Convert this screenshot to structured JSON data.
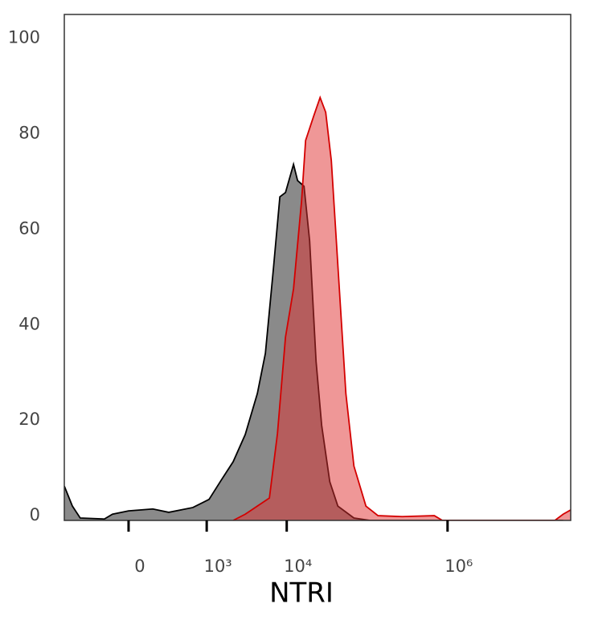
{
  "chart_data": {
    "type": "area",
    "x_label": "NTRI",
    "xscale": "biexponential",
    "xlim": [
      -663,
      34000000
    ],
    "xticks": [
      {
        "value": 0,
        "label": "0"
      },
      {
        "value": 1000,
        "label": "10³"
      },
      {
        "value": 10000,
        "label": "10⁴"
      },
      {
        "value": 1000000,
        "label": "10⁶"
      }
    ],
    "ylim": [
      0,
      106
    ],
    "yticks": [
      0,
      20,
      40,
      60,
      80,
      100
    ],
    "series": [
      {
        "color": "#8a8a8a",
        "line_color": "#000000",
        "opacity": 1,
        "x": [
          -663,
          -518,
          -404,
          -162,
          -103,
          0,
          162,
          307,
          663,
          1071,
          1521,
          2153,
          3046,
          4313,
          5427,
          6826,
          8217,
          9655,
          12150,
          13650,
          16420,
          19270,
          23180,
          27210,
          34330,
          43240,
          68460,
          108500,
          27400000
        ],
        "values": [
          7.2,
          3,
          0.5,
          0.3,
          1.3,
          2,
          2.4,
          1.7,
          2.7,
          4.4,
          8.4,
          12.3,
          18,
          26.6,
          35,
          52.7,
          67.8,
          68.7,
          74.6,
          71.2,
          70,
          58.6,
          33.3,
          19.9,
          8.1,
          3,
          0.5,
          0,
          0
        ]
      },
      {
        "color": "#e03030",
        "line_color": "#d40000",
        "opacity": 0.5,
        "x": [
          2153,
          3046,
          4313,
          6090,
          7670,
          9655,
          12150,
          15310,
          17170,
          21640,
          26010,
          30540,
          35860,
          43240,
          54400,
          68460,
          96600,
          136500,
          272600,
          685000,
          862700,
          21600000,
          27400000,
          34000000
        ],
        "values": [
          0,
          1.3,
          3,
          4.7,
          18.2,
          38.4,
          48.5,
          67,
          79.6,
          84.7,
          88.6,
          85.5,
          75.4,
          53.5,
          26.6,
          11.4,
          3,
          1,
          0.8,
          1,
          0,
          0,
          1.3,
          2.2
        ]
      }
    ]
  }
}
